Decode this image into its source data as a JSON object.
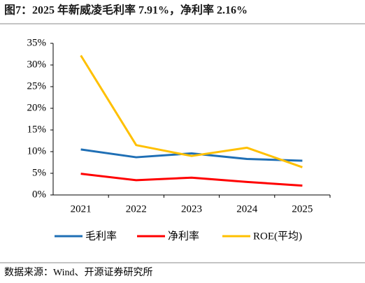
{
  "chart_data": {
    "type": "line",
    "title": "图7：2025 年新威凌毛利率 7.91%，净利率 2.16%",
    "source": "数据来源：Wind、开源证券研究所",
    "categories": [
      "2021",
      "2022",
      "2023",
      "2024",
      "2025"
    ],
    "series": [
      {
        "name": "毛利率",
        "color": "#1f6fb5",
        "values": [
          10.5,
          8.7,
          9.6,
          8.3,
          7.91
        ]
      },
      {
        "name": "净利率",
        "color": "#ff0000",
        "values": [
          4.9,
          3.4,
          4.0,
          3.0,
          2.16
        ]
      },
      {
        "name": "ROE(平均)",
        "color": "#ffc000",
        "values": [
          32.2,
          11.5,
          9.0,
          10.9,
          6.4
        ]
      }
    ],
    "ylim": [
      0,
      35
    ],
    "yticks": [
      {
        "value": 0,
        "label": "0%"
      },
      {
        "value": 5,
        "label": "5%"
      },
      {
        "value": 10,
        "label": "10%"
      },
      {
        "value": 15,
        "label": "15%"
      },
      {
        "value": 20,
        "label": "20%"
      },
      {
        "value": 25,
        "label": "25%"
      },
      {
        "value": 30,
        "label": "30%"
      },
      {
        "value": 35,
        "label": "35%"
      }
    ],
    "grid": false
  }
}
